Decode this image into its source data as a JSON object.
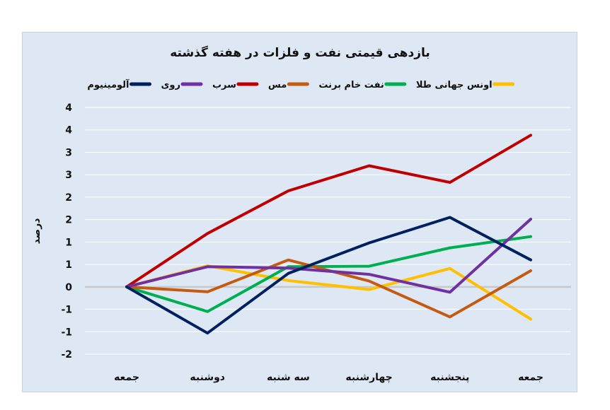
{
  "chart_data": {
    "type": "line",
    "title": "بازدهی قیمتی نفت و فلزات در هفته گذشته",
    "ylabel": "درصد",
    "xlabel": "",
    "categories": [
      "جمعه",
      "دوشنبه",
      "سه شنبه",
      "چهارشنبه",
      "پنجشنبه",
      "جمعه"
    ],
    "y_tick_labels": [
      "4",
      "4",
      "3",
      "3",
      "2",
      "2",
      "1",
      "1",
      "0",
      "-1",
      "-1",
      "-2"
    ],
    "y_tick_values": [
      4,
      3.5,
      3,
      2.5,
      2,
      1.5,
      1,
      0.5,
      0,
      -0.5,
      -1,
      -1.5
    ],
    "ylim": [
      -1.5,
      4
    ],
    "grid": true,
    "legend_position": "top",
    "series": [
      {
        "name": "اونس جهانی طلا",
        "color": "#ffc000",
        "values": [
          0,
          0.47,
          0.14,
          -0.06,
          0.41,
          -0.72
        ]
      },
      {
        "name": "نفت خام برنت",
        "color": "#00b050",
        "values": [
          0,
          -0.55,
          0.45,
          0.46,
          0.87,
          1.12
        ]
      },
      {
        "name": "مس",
        "color": "#c55a11",
        "values": [
          0,
          -0.11,
          0.6,
          0.13,
          -0.67,
          0.36
        ]
      },
      {
        "name": "سرب",
        "color": "#c00000",
        "values": [
          0,
          1.19,
          2.14,
          2.7,
          2.33,
          3.38
        ]
      },
      {
        "name": "روی",
        "color": "#7030a0",
        "values": [
          0,
          0.45,
          0.42,
          0.28,
          -0.12,
          1.51
        ]
      },
      {
        "name": "آلومینیوم",
        "color": "#002060",
        "values": [
          0,
          -1.03,
          0.3,
          0.98,
          1.55,
          0.6
        ]
      }
    ]
  }
}
